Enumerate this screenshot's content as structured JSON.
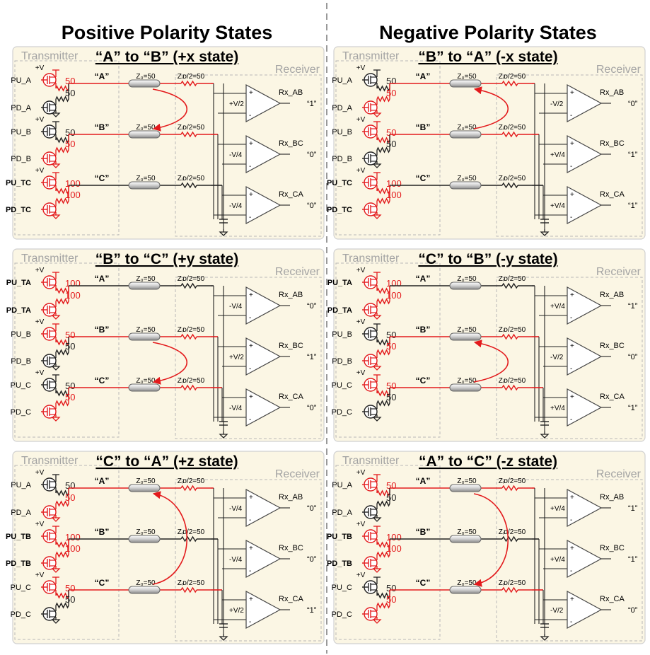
{
  "headers": {
    "left": "Positive Polarity States",
    "right": "Negative Polarity States"
  },
  "sections": {
    "transmitter": "Transmitter",
    "receiver": "Receiver"
  },
  "labels": {
    "vplus": "+V",
    "node_a": "“A”",
    "node_b": "“B”",
    "node_c": "“C”",
    "z0": "Z₀=50",
    "zid": "Zᵢᴅ/2=50",
    "rx_ab": "Rx_AB",
    "rx_bc": "Rx_BC",
    "rx_ca": "Rx_CA"
  },
  "colors": {
    "panel_bg": "#fbf6e4",
    "active": "#e31a1c",
    "wire": "#222222",
    "dash": "#b8b8b8"
  },
  "panels": [
    {
      "id": "pos-x",
      "title": "“A” to “B” (+x state)",
      "tx": [
        {
          "name": "PU_A",
          "val": "50",
          "bold": false,
          "red": true
        },
        {
          "name": "PD_A",
          "val": "50",
          "bold": false,
          "red": false
        },
        {
          "name": "PU_B",
          "val": "50",
          "bold": false,
          "red": false
        },
        {
          "name": "PD_B",
          "val": "50",
          "bold": false,
          "red": true
        },
        {
          "name": "PU_TC",
          "val": "100",
          "bold": true,
          "red": true
        },
        {
          "name": "PD_TC",
          "val": "100",
          "bold": true,
          "red": true
        }
      ],
      "lines": [
        true,
        true,
        false
      ],
      "vth": [
        "+V/2",
        "-V/4",
        "-V/4"
      ],
      "out": [
        "“1”",
        "“0”",
        "“0”"
      ],
      "arrow": "0-1"
    },
    {
      "id": "neg-x",
      "title": "“B” to “A” (-x state)",
      "tx": [
        {
          "name": "PU_A",
          "val": "50",
          "bold": false,
          "red": false
        },
        {
          "name": "PD_A",
          "val": "50",
          "bold": false,
          "red": true
        },
        {
          "name": "PU_B",
          "val": "50",
          "bold": false,
          "red": true
        },
        {
          "name": "PD_B",
          "val": "50",
          "bold": false,
          "red": false
        },
        {
          "name": "PU_TC",
          "val": "100",
          "bold": true,
          "red": true
        },
        {
          "name": "PD_TC",
          "val": "100",
          "bold": true,
          "red": true
        }
      ],
      "lines": [
        true,
        true,
        false
      ],
      "vth": [
        "-V/2",
        "+V/4",
        "+V/4"
      ],
      "out": [
        "“0”",
        "“1”",
        "“1”"
      ],
      "arrow": "1-0"
    },
    {
      "id": "pos-y",
      "title": "“B” to “C” (+y state)",
      "tx": [
        {
          "name": "PU_TA",
          "val": "100",
          "bold": true,
          "red": true
        },
        {
          "name": "PD_TA",
          "val": "100",
          "bold": true,
          "red": true
        },
        {
          "name": "PU_B",
          "val": "50",
          "bold": false,
          "red": true
        },
        {
          "name": "PD_B",
          "val": "50",
          "bold": false,
          "red": false
        },
        {
          "name": "PU_C",
          "val": "50",
          "bold": false,
          "red": false
        },
        {
          "name": "PD_C",
          "val": "50",
          "bold": false,
          "red": true
        }
      ],
      "lines": [
        false,
        true,
        true
      ],
      "vth": [
        "-V/4",
        "+V/2",
        "-V/4"
      ],
      "out": [
        "“0”",
        "“1”",
        "“0”"
      ],
      "arrow": "1-2"
    },
    {
      "id": "neg-y",
      "title": "“C” to “B” (-y state)",
      "tx": [
        {
          "name": "PU_TA",
          "val": "100",
          "bold": true,
          "red": true
        },
        {
          "name": "PD_TA",
          "val": "100",
          "bold": true,
          "red": true
        },
        {
          "name": "PU_B",
          "val": "50",
          "bold": false,
          "red": false
        },
        {
          "name": "PD_B",
          "val": "50",
          "bold": false,
          "red": true
        },
        {
          "name": "PU_C",
          "val": "50",
          "bold": false,
          "red": true
        },
        {
          "name": "PD_C",
          "val": "50",
          "bold": false,
          "red": false
        }
      ],
      "lines": [
        false,
        true,
        true
      ],
      "vth": [
        "+V/4",
        "-V/2",
        "+V/4"
      ],
      "out": [
        "“1”",
        "“0”",
        "“1”"
      ],
      "arrow": "2-1"
    },
    {
      "id": "pos-z",
      "title": "“C” to “A” (+z state)",
      "tx": [
        {
          "name": "PU_A",
          "val": "50",
          "bold": false,
          "red": false
        },
        {
          "name": "PD_A",
          "val": "50",
          "bold": false,
          "red": true
        },
        {
          "name": "PU_TB",
          "val": "100",
          "bold": true,
          "red": true
        },
        {
          "name": "PD_TB",
          "val": "100",
          "bold": true,
          "red": true
        },
        {
          "name": "PU_C",
          "val": "50",
          "bold": false,
          "red": true
        },
        {
          "name": "PD_C",
          "val": "50",
          "bold": false,
          "red": false
        }
      ],
      "lines": [
        true,
        false,
        true
      ],
      "vth": [
        "-V/4",
        "-V/4",
        "+V/2"
      ],
      "out": [
        "“0”",
        "“0”",
        "“1”"
      ],
      "arrow": "2-0"
    },
    {
      "id": "neg-z",
      "title": "“A” to “C” (-z state)",
      "tx": [
        {
          "name": "PU_A",
          "val": "50",
          "bold": false,
          "red": true
        },
        {
          "name": "PD_A",
          "val": "50",
          "bold": false,
          "red": false
        },
        {
          "name": "PU_TB",
          "val": "100",
          "bold": true,
          "red": true
        },
        {
          "name": "PD_TB",
          "val": "100",
          "bold": true,
          "red": true
        },
        {
          "name": "PU_C",
          "val": "50",
          "bold": false,
          "red": false
        },
        {
          "name": "PD_C",
          "val": "50",
          "bold": false,
          "red": true
        }
      ],
      "lines": [
        true,
        false,
        true
      ],
      "vth": [
        "+V/4",
        "+V/4",
        "-V/2"
      ],
      "out": [
        "“1”",
        "“1”",
        "“0”"
      ],
      "arrow": "0-2"
    }
  ]
}
